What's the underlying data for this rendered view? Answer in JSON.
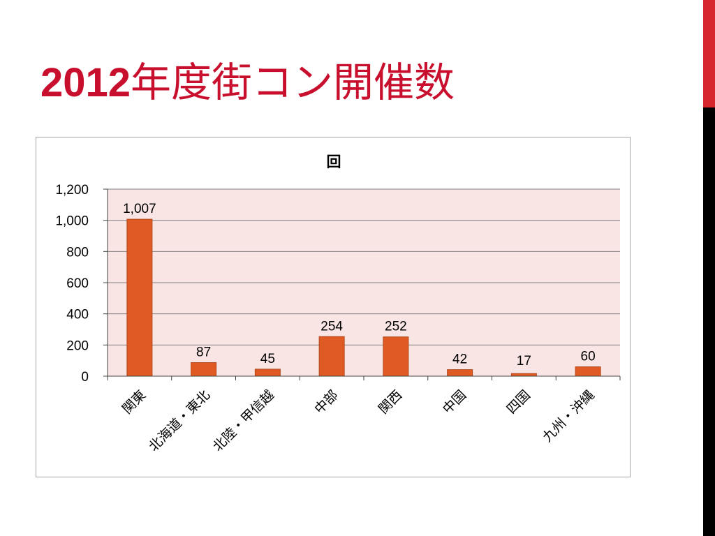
{
  "slide": {
    "title_year": "2012",
    "title_rest": "年度街コン開催数"
  },
  "colors": {
    "title": "#c8102e",
    "accent_top": "#d7262e",
    "accent_bottom": "#000000",
    "bar": "#e05a23",
    "bar_stroke": "#b4471a",
    "plot_background": "#f8e5e4",
    "gridline": "#7f7f7f"
  },
  "chart_data": {
    "type": "bar",
    "title": "回",
    "categories": [
      "関東",
      "北海道・東北",
      "北陸・甲信越",
      "中部",
      "関西",
      "中国",
      "四国",
      "九州・沖縄"
    ],
    "values": [
      1007,
      87,
      45,
      254,
      252,
      42,
      17,
      60
    ],
    "value_labels": [
      "1,007",
      "87",
      "45",
      "254",
      "252",
      "42",
      "17",
      "60"
    ],
    "yticks": [
      0,
      200,
      400,
      600,
      800,
      1000,
      1200
    ],
    "ytick_labels": [
      "0",
      "200",
      "400",
      "600",
      "800",
      "1,000",
      "1,200"
    ],
    "ylim": [
      0,
      1200
    ],
    "grid": true,
    "legend": "none",
    "xlabel": "",
    "ylabel": ""
  }
}
